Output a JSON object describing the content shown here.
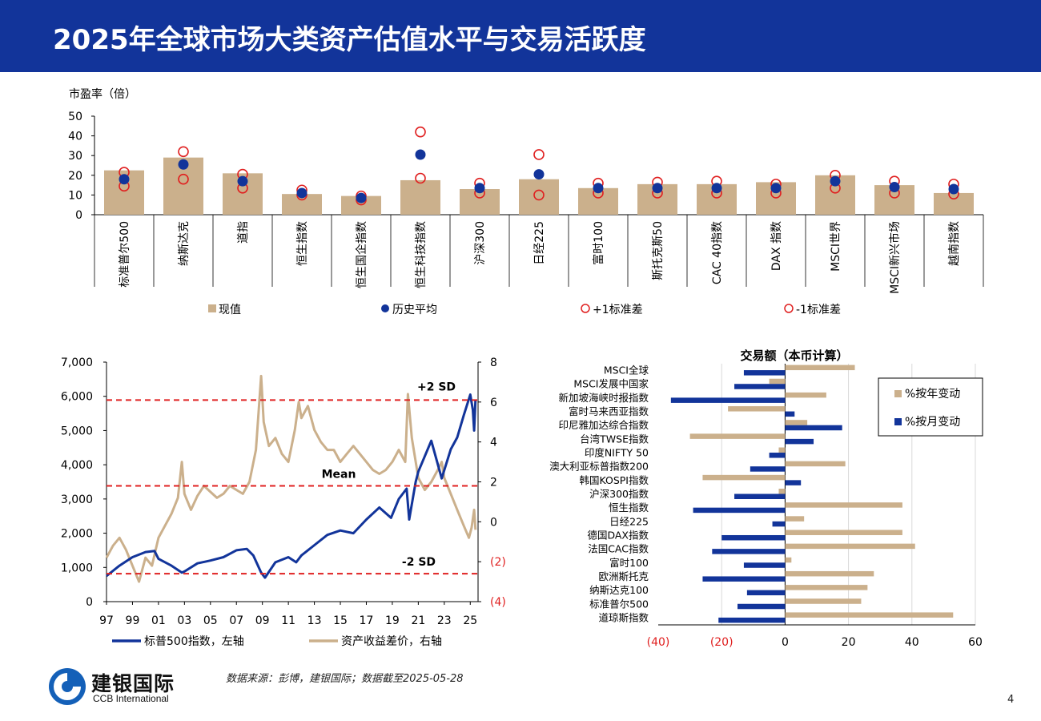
{
  "title": "2025年全球市场大类资产估值水平与交易活跃度",
  "source": "数据来源：彭博，建银国际；数据截至2025-05-28",
  "logo": {
    "cn": "建银国际",
    "en": "CCB International"
  },
  "page_number": "4",
  "colors": {
    "header": "#12349a",
    "tan": "#cbb08c",
    "navy": "#12349a",
    "red": "#e02020"
  },
  "chart_data": [
    {
      "type": "bar",
      "title": "",
      "ylabel": "市盈率（倍）",
      "ylim": [
        0,
        50
      ],
      "yticks": [
        0,
        10,
        20,
        30,
        40,
        50
      ],
      "categories": [
        "标准普尔500",
        "纳斯达克",
        "道指",
        "恒生指数",
        "恒生国企指数",
        "恒生科技指数",
        "沪深300",
        "日经225",
        "富时100",
        "斯托克斯50",
        "CAC 40指数",
        "DAX 指数",
        "MSCI世界",
        "MSCI新兴市场",
        "越南指数"
      ],
      "series": [
        {
          "name": "现值",
          "values": [
            22.5,
            29,
            21,
            10.5,
            9.5,
            17.5,
            13,
            18,
            13.5,
            15.5,
            15.5,
            16.5,
            20,
            15,
            11
          ]
        },
        {
          "name": "历史平均",
          "values": [
            18,
            25.5,
            17,
            11,
            8.5,
            30.5,
            13.5,
            20.5,
            13.5,
            13.5,
            13.5,
            13.5,
            17,
            14,
            13
          ]
        },
        {
          "name": "+1标准差",
          "values": [
            21.5,
            32,
            20.5,
            12.5,
            9.5,
            42,
            16,
            30.5,
            16,
            16.5,
            17,
            15.5,
            20,
            17,
            15.5
          ]
        },
        {
          "name": "-1标准差",
          "values": [
            14.5,
            18,
            13.5,
            10,
            7.5,
            18.5,
            11,
            10,
            11,
            11,
            11,
            11,
            13.5,
            11,
            10.5
          ]
        }
      ]
    },
    {
      "type": "line",
      "title": "",
      "x_tick_labels": [
        "97",
        "99",
        "01",
        "03",
        "05",
        "07",
        "09",
        "11",
        "13",
        "15",
        "17",
        "19",
        "21",
        "23",
        "25"
      ],
      "x_range": [
        1997,
        2025.6
      ],
      "ylim_left": [
        0,
        7000
      ],
      "yticks_left": [
        "0",
        "1,000",
        "2,000",
        "3,000",
        "4,000",
        "5,000",
        "6,000",
        "7,000"
      ],
      "ylim_right": [
        -4,
        8
      ],
      "yticks_right": [
        "(4)",
        "(2)",
        "0",
        "2",
        "4",
        "6",
        "8"
      ],
      "reference_lines": [
        {
          "label": "+2 SD",
          "value": 6.1
        },
        {
          "label": "Mean",
          "value": 1.8
        },
        {
          "label": "-2 SD",
          "value": -2.6
        }
      ],
      "series": [
        {
          "name": "标普500指数，左轴",
          "axis": "left",
          "points": [
            [
              1997,
              750
            ],
            [
              1998,
              1050
            ],
            [
              1999,
              1300
            ],
            [
              2000,
              1450
            ],
            [
              2000.7,
              1480
            ],
            [
              2001,
              1250
            ],
            [
              2002,
              1050
            ],
            [
              2002.8,
              850
            ],
            [
              2003,
              880
            ],
            [
              2004,
              1120
            ],
            [
              2005,
              1200
            ],
            [
              2006,
              1300
            ],
            [
              2007,
              1500
            ],
            [
              2007.8,
              1540
            ],
            [
              2008.3,
              1350
            ],
            [
              2008.9,
              850
            ],
            [
              2009.2,
              700
            ],
            [
              2010,
              1150
            ],
            [
              2011,
              1300
            ],
            [
              2011.6,
              1150
            ],
            [
              2012,
              1350
            ],
            [
              2013,
              1650
            ],
            [
              2014,
              1950
            ],
            [
              2015,
              2080
            ],
            [
              2016,
              2000
            ],
            [
              2017,
              2400
            ],
            [
              2018,
              2750
            ],
            [
              2018.9,
              2450
            ],
            [
              2019.5,
              3000
            ],
            [
              2020.1,
              3300
            ],
            [
              2020.3,
              2400
            ],
            [
              2020.8,
              3500
            ],
            [
              2021,
              3800
            ],
            [
              2022,
              4700
            ],
            [
              2022.8,
              3600
            ],
            [
              2023.5,
              4450
            ],
            [
              2024,
              4800
            ],
            [
              2024.5,
              5450
            ],
            [
              2025.0,
              6050
            ],
            [
              2025.2,
              5600
            ],
            [
              2025.3,
              5000
            ],
            [
              2025.4,
              5900
            ]
          ]
        },
        {
          "name": "资产收益差价，右轴",
          "axis": "right",
          "points": [
            [
              1997,
              -1.8
            ],
            [
              1997.5,
              -1.2
            ],
            [
              1998,
              -0.8
            ],
            [
              1998.5,
              -1.4
            ],
            [
              1999,
              -2.2
            ],
            [
              1999.5,
              -3.0
            ],
            [
              2000,
              -1.8
            ],
            [
              2000.5,
              -2.2
            ],
            [
              2001,
              -0.8
            ],
            [
              2001.5,
              -0.2
            ],
            [
              2002,
              0.4
            ],
            [
              2002.5,
              1.2
            ],
            [
              2002.8,
              3.0
            ],
            [
              2003,
              1.4
            ],
            [
              2003.5,
              0.6
            ],
            [
              2004,
              1.3
            ],
            [
              2004.5,
              1.8
            ],
            [
              2005,
              1.5
            ],
            [
              2005.5,
              1.2
            ],
            [
              2006,
              1.4
            ],
            [
              2006.5,
              1.8
            ],
            [
              2007,
              1.6
            ],
            [
              2007.5,
              1.4
            ],
            [
              2008,
              2.0
            ],
            [
              2008.5,
              3.6
            ],
            [
              2008.9,
              7.3
            ],
            [
              2009.1,
              5.0
            ],
            [
              2009.5,
              3.8
            ],
            [
              2010,
              4.2
            ],
            [
              2010.5,
              3.4
            ],
            [
              2011,
              3.0
            ],
            [
              2011.5,
              4.6
            ],
            [
              2011.8,
              6.0
            ],
            [
              2012,
              5.2
            ],
            [
              2012.5,
              5.8
            ],
            [
              2013,
              4.6
            ],
            [
              2013.5,
              4.0
            ],
            [
              2014,
              3.6
            ],
            [
              2014.5,
              3.6
            ],
            [
              2015,
              3.0
            ],
            [
              2015.5,
              3.4
            ],
            [
              2016,
              3.8
            ],
            [
              2016.5,
              3.4
            ],
            [
              2017,
              3.0
            ],
            [
              2017.5,
              2.6
            ],
            [
              2018,
              2.4
            ],
            [
              2018.5,
              2.6
            ],
            [
              2019,
              3.0
            ],
            [
              2019.5,
              3.6
            ],
            [
              2020.0,
              3.0
            ],
            [
              2020.2,
              6.4
            ],
            [
              2020.5,
              4.2
            ],
            [
              2021,
              2.2
            ],
            [
              2021.5,
              1.6
            ],
            [
              2022,
              2.0
            ],
            [
              2022.5,
              2.6
            ],
            [
              2022.8,
              3.0
            ],
            [
              2023,
              2.2
            ],
            [
              2023.5,
              1.4
            ],
            [
              2024,
              0.6
            ],
            [
              2024.5,
              -0.2
            ],
            [
              2024.9,
              -0.8
            ],
            [
              2025.1,
              -0.3
            ],
            [
              2025.3,
              0.6
            ],
            [
              2025.4,
              -0.4
            ]
          ]
        }
      ]
    },
    {
      "type": "bar",
      "orientation": "horizontal",
      "title": "交易额（本币计算）",
      "xlim": [
        -40,
        60
      ],
      "xticks": [
        "(40)",
        "(20)",
        "0",
        "20",
        "40",
        "60"
      ],
      "categories": [
        "MSCI全球",
        "MSCI发展中国家",
        "新加坡海峡时报指数",
        "富时马来西亚指数",
        "印尼雅加达综合指数",
        "台湾TWSE指数",
        "印度NIFTY 50",
        "澳大利亚标普指数200",
        "韩国KOSPI指数",
        "沪深300指数",
        "恒生指数",
        "日经225",
        "德国DAX指数",
        "法国CAC指数",
        "富时100",
        "欧洲斯托克",
        "纳斯达克100",
        "标准普尔500",
        "道琼斯指数"
      ],
      "series": [
        {
          "name": "%按年变动",
          "values": [
            22,
            -5,
            13,
            -18,
            7,
            -30,
            -2,
            19,
            -26,
            -2,
            37,
            6,
            37,
            41,
            2,
            28,
            26,
            24,
            53
          ]
        },
        {
          "name": "%按月变动",
          "values": [
            -13,
            -16,
            -36,
            3,
            18,
            9,
            -5,
            -11,
            5,
            -16,
            -29,
            -4,
            -20,
            -23,
            -13,
            -26,
            -12,
            -15,
            -21
          ]
        }
      ]
    }
  ]
}
